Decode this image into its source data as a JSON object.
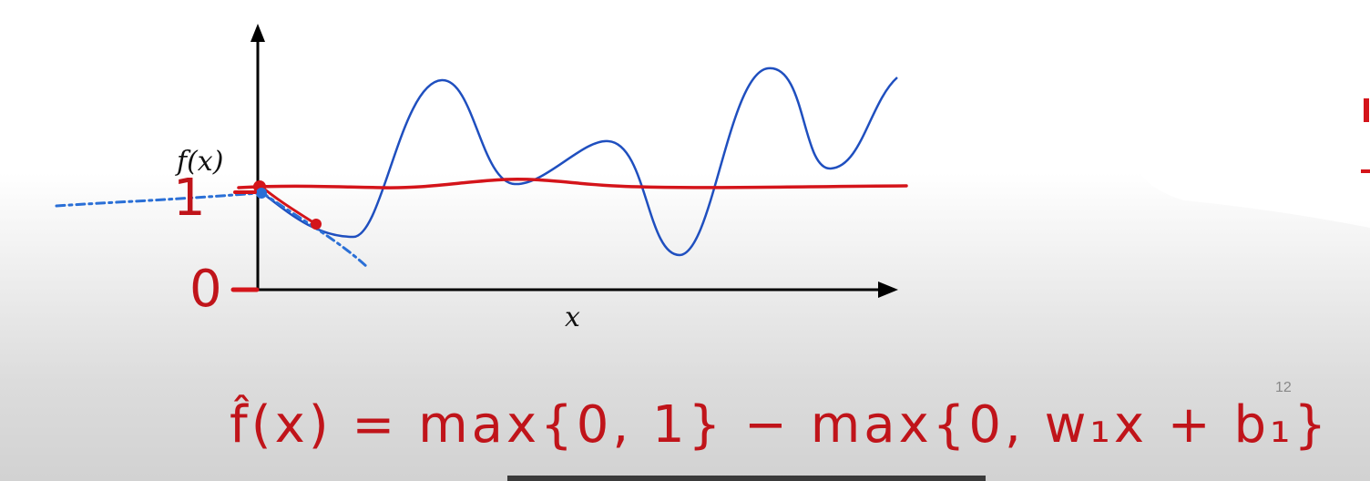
{
  "plot": {
    "y_axis_label": "f(x)",
    "x_axis_label": "x"
  },
  "annotations": {
    "one_label": "1",
    "zero_label": "0",
    "formula": "f̂(x) = max{0, 1} − max{0, w₁x + b₁}"
  },
  "slide": {
    "page_number": "12"
  },
  "colors": {
    "curve": "#1f4fbf",
    "ink_red": "#d4141a",
    "ink_blue": "#2a6fd6",
    "axis": "#000000"
  }
}
